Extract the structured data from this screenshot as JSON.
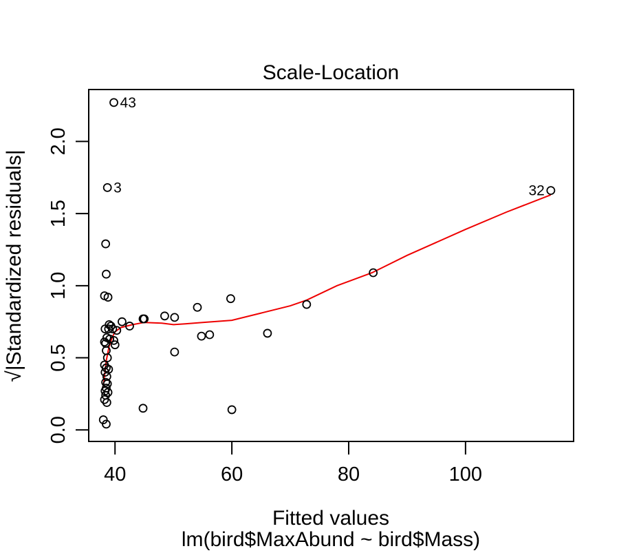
{
  "chart_data": {
    "type": "scatter",
    "title": "Scale-Location",
    "xlabel": "Fitted values",
    "xlabel_sub": "lm(bird$MaxAbund ~ bird$Mass)",
    "ylabel": "√|Standardized residuals|",
    "xlim": [
      35.5,
      118.5
    ],
    "ylim": [
      -0.08,
      2.36
    ],
    "xticks": [
      40,
      60,
      80,
      100
    ],
    "yticks": [
      0.0,
      0.5,
      1.0,
      1.5,
      2.0
    ],
    "xtick_labels": [
      "40",
      "60",
      "80",
      "100"
    ],
    "ytick_labels": [
      "0.0",
      "0.5",
      "1.0",
      "1.5",
      "2.0"
    ],
    "grid": false,
    "point_color": "#000000",
    "smooth_color": "#ee0000",
    "points": [
      [
        39.8,
        2.27
      ],
      [
        38.7,
        1.68
      ],
      [
        114.6,
        1.66
      ],
      [
        38.4,
        1.29
      ],
      [
        38.5,
        1.08
      ],
      [
        84.2,
        1.09
      ],
      [
        38.2,
        0.93
      ],
      [
        38.8,
        0.92
      ],
      [
        59.8,
        0.91
      ],
      [
        72.8,
        0.87
      ],
      [
        54.1,
        0.85
      ],
      [
        48.5,
        0.79
      ],
      [
        50.2,
        0.78
      ],
      [
        44.8,
        0.77
      ],
      [
        45.0,
        0.77
      ],
      [
        41.2,
        0.75
      ],
      [
        39.0,
        0.73
      ],
      [
        39.3,
        0.72
      ],
      [
        42.5,
        0.72
      ],
      [
        38.3,
        0.7
      ],
      [
        38.9,
        0.7
      ],
      [
        39.6,
        0.7
      ],
      [
        40.3,
        0.69
      ],
      [
        66.1,
        0.67
      ],
      [
        56.2,
        0.66
      ],
      [
        54.8,
        0.65
      ],
      [
        38.6,
        0.64
      ],
      [
        39.1,
        0.63
      ],
      [
        39.8,
        0.62
      ],
      [
        38.2,
        0.61
      ],
      [
        38.4,
        0.6
      ],
      [
        40.0,
        0.59
      ],
      [
        38.5,
        0.55
      ],
      [
        50.2,
        0.54
      ],
      [
        38.7,
        0.5
      ],
      [
        38.2,
        0.45
      ],
      [
        38.5,
        0.43
      ],
      [
        38.9,
        0.42
      ],
      [
        38.3,
        0.4
      ],
      [
        38.6,
        0.37
      ],
      [
        38.4,
        0.33
      ],
      [
        38.7,
        0.32
      ],
      [
        38.5,
        0.29
      ],
      [
        38.3,
        0.27
      ],
      [
        38.8,
        0.26
      ],
      [
        38.4,
        0.24
      ],
      [
        38.2,
        0.21
      ],
      [
        38.6,
        0.19
      ],
      [
        44.8,
        0.15
      ],
      [
        60.0,
        0.14
      ],
      [
        38.0,
        0.07
      ],
      [
        38.5,
        0.04
      ]
    ],
    "smooth": [
      [
        38.0,
        0.3
      ],
      [
        38.5,
        0.48
      ],
      [
        39.0,
        0.58
      ],
      [
        39.5,
        0.64
      ],
      [
        40.0,
        0.68
      ],
      [
        41.0,
        0.71
      ],
      [
        43.0,
        0.73
      ],
      [
        45.0,
        0.745
      ],
      [
        48.0,
        0.74
      ],
      [
        50.0,
        0.73
      ],
      [
        52.0,
        0.735
      ],
      [
        55.0,
        0.745
      ],
      [
        60.0,
        0.76
      ],
      [
        65.0,
        0.81
      ],
      [
        70.0,
        0.86
      ],
      [
        72.8,
        0.9
      ],
      [
        78.0,
        1.0
      ],
      [
        84.0,
        1.09
      ],
      [
        90.0,
        1.21
      ],
      [
        100.0,
        1.39
      ],
      [
        107.0,
        1.51
      ],
      [
        114.6,
        1.63
      ]
    ],
    "annotations": [
      {
        "label": "43",
        "x": 39.8,
        "y": 2.27,
        "side": "right"
      },
      {
        "label": "3",
        "x": 38.7,
        "y": 1.68,
        "side": "right"
      },
      {
        "label": "32",
        "x": 114.6,
        "y": 1.66,
        "side": "left"
      }
    ]
  }
}
